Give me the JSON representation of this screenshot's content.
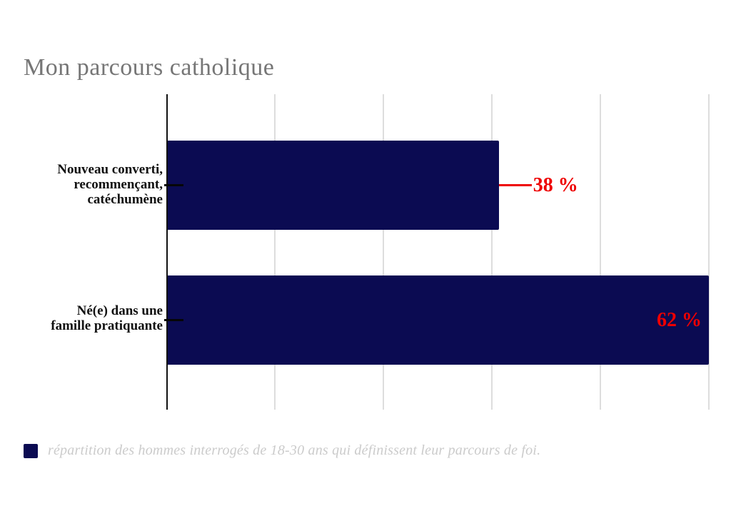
{
  "chart_data": {
    "type": "bar",
    "orientation": "horizontal",
    "title": "Mon parcours catholique",
    "categories": [
      "Nouveau converti,\nrecommençant,\ncatéchumène",
      "Né(e) dans une\nfamille pratiquante"
    ],
    "values": [
      38,
      62
    ],
    "data_labels": [
      "38 %",
      "62 %"
    ],
    "unit": "%",
    "xlim": [
      0,
      62
    ],
    "grid": "vertical",
    "gridline_count": 5,
    "bar_color": "#0b0b52",
    "value_label_color": "#ee0000",
    "axis_color": "#111111",
    "gridline_color": "#dddddd",
    "title_color": "#767676"
  },
  "legend": {
    "swatch_color": "#0b0b52",
    "text": "répartition des hommes interrogés de 18-30 ans qui définissent leur parcours de foi."
  }
}
